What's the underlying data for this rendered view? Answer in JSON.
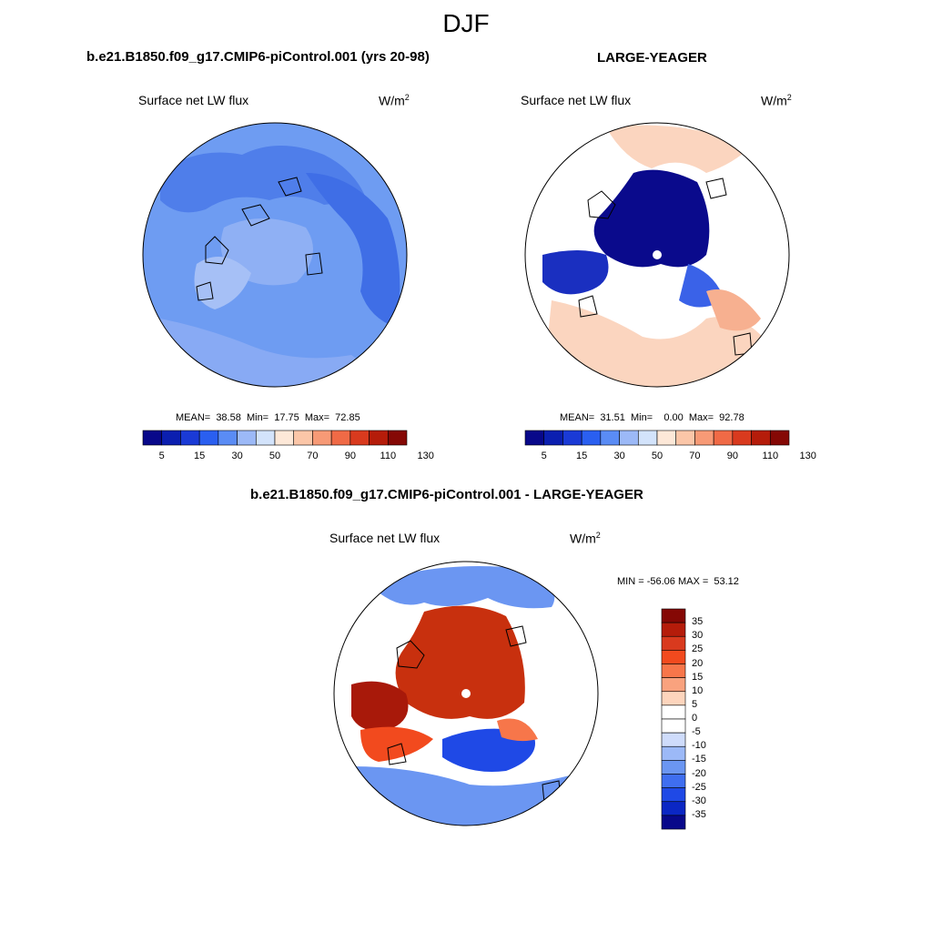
{
  "figure": {
    "season": "DJF",
    "units_base": "W/m",
    "units_exp": "2"
  },
  "panels": {
    "p1": {
      "title": "b.e21.B1850.f09_g17.CMIP6-piControl.001 (yrs 20-98)",
      "subtitle": "Surface net LW flux",
      "stats": "MEAN=  38.58  Min=  17.75  Max=  72.85"
    },
    "p2": {
      "title": "LARGE-YEAGER",
      "subtitle": "Surface net LW flux",
      "stats": "MEAN=  31.51  Min=    0.00  Max=  92.78"
    },
    "p3": {
      "title": "b.e21.B1850.f09_g17.CMIP6-piControl.001 - LARGE-YEAGER",
      "subtitle": "Surface net LW flux",
      "stats": "MIN = -56.06 MAX =  53.12"
    }
  },
  "colorbars": {
    "abs": {
      "colors": [
        "#08088a",
        "#0b1fb0",
        "#1a3ad6",
        "#2a5ff0",
        "#5a8cf5",
        "#9cb9f7",
        "#d3e3fb",
        "#fde8d8",
        "#fbc6a8",
        "#f79a76",
        "#f06a46",
        "#d93a1e",
        "#b51c0a",
        "#850805"
      ],
      "labels": [
        "5",
        "15",
        "30",
        "50",
        "70",
        "90",
        "110",
        "130"
      ]
    },
    "diff": {
      "colors": [
        "#850805",
        "#b51c0a",
        "#d93a1e",
        "#f24a1e",
        "#f7764a",
        "#f9a27e",
        "#fdd5bd",
        "#ffffff",
        "#ffffff",
        "#cfdcfb",
        "#9cb9f7",
        "#6b96f2",
        "#3f6ef0",
        "#1f49e6",
        "#0b27c4",
        "#08088a"
      ],
      "labels": [
        "35",
        "30",
        "25",
        "20",
        "15",
        "10",
        "5",
        "0",
        "-5",
        "-10",
        "-15",
        "-20",
        "-25",
        "-30",
        "-35"
      ]
    }
  },
  "chart_data": [
    {
      "type": "heatmap",
      "projection": "north-polar-stereographic",
      "title": "b.e21.B1850.f09_g17.CMIP6-piControl.001 (yrs 20-98)",
      "variable": "Surface net LW flux",
      "units": "W/m2",
      "mean": 38.58,
      "min": 17.75,
      "max": 72.85,
      "colorbar_levels": [
        5,
        10,
        15,
        20,
        30,
        40,
        50,
        60,
        70,
        80,
        90,
        100,
        110,
        120,
        130
      ]
    },
    {
      "type": "heatmap",
      "projection": "north-polar-stereographic",
      "title": "LARGE-YEAGER",
      "variable": "Surface net LW flux",
      "units": "W/m2",
      "mean": 31.51,
      "min": 0.0,
      "max": 92.78,
      "colorbar_levels": [
        5,
        10,
        15,
        20,
        30,
        40,
        50,
        60,
        70,
        80,
        90,
        100,
        110,
        120,
        130
      ]
    },
    {
      "type": "heatmap",
      "projection": "north-polar-stereographic",
      "title": "b.e21.B1850.f09_g17.CMIP6-piControl.001 - LARGE-YEAGER",
      "variable": "Surface net LW flux",
      "units": "W/m2",
      "min": -56.06,
      "max": 53.12,
      "colorbar_levels": [
        -35,
        -30,
        -25,
        -20,
        -15,
        -10,
        -5,
        0,
        5,
        10,
        15,
        20,
        25,
        30,
        35
      ]
    }
  ]
}
